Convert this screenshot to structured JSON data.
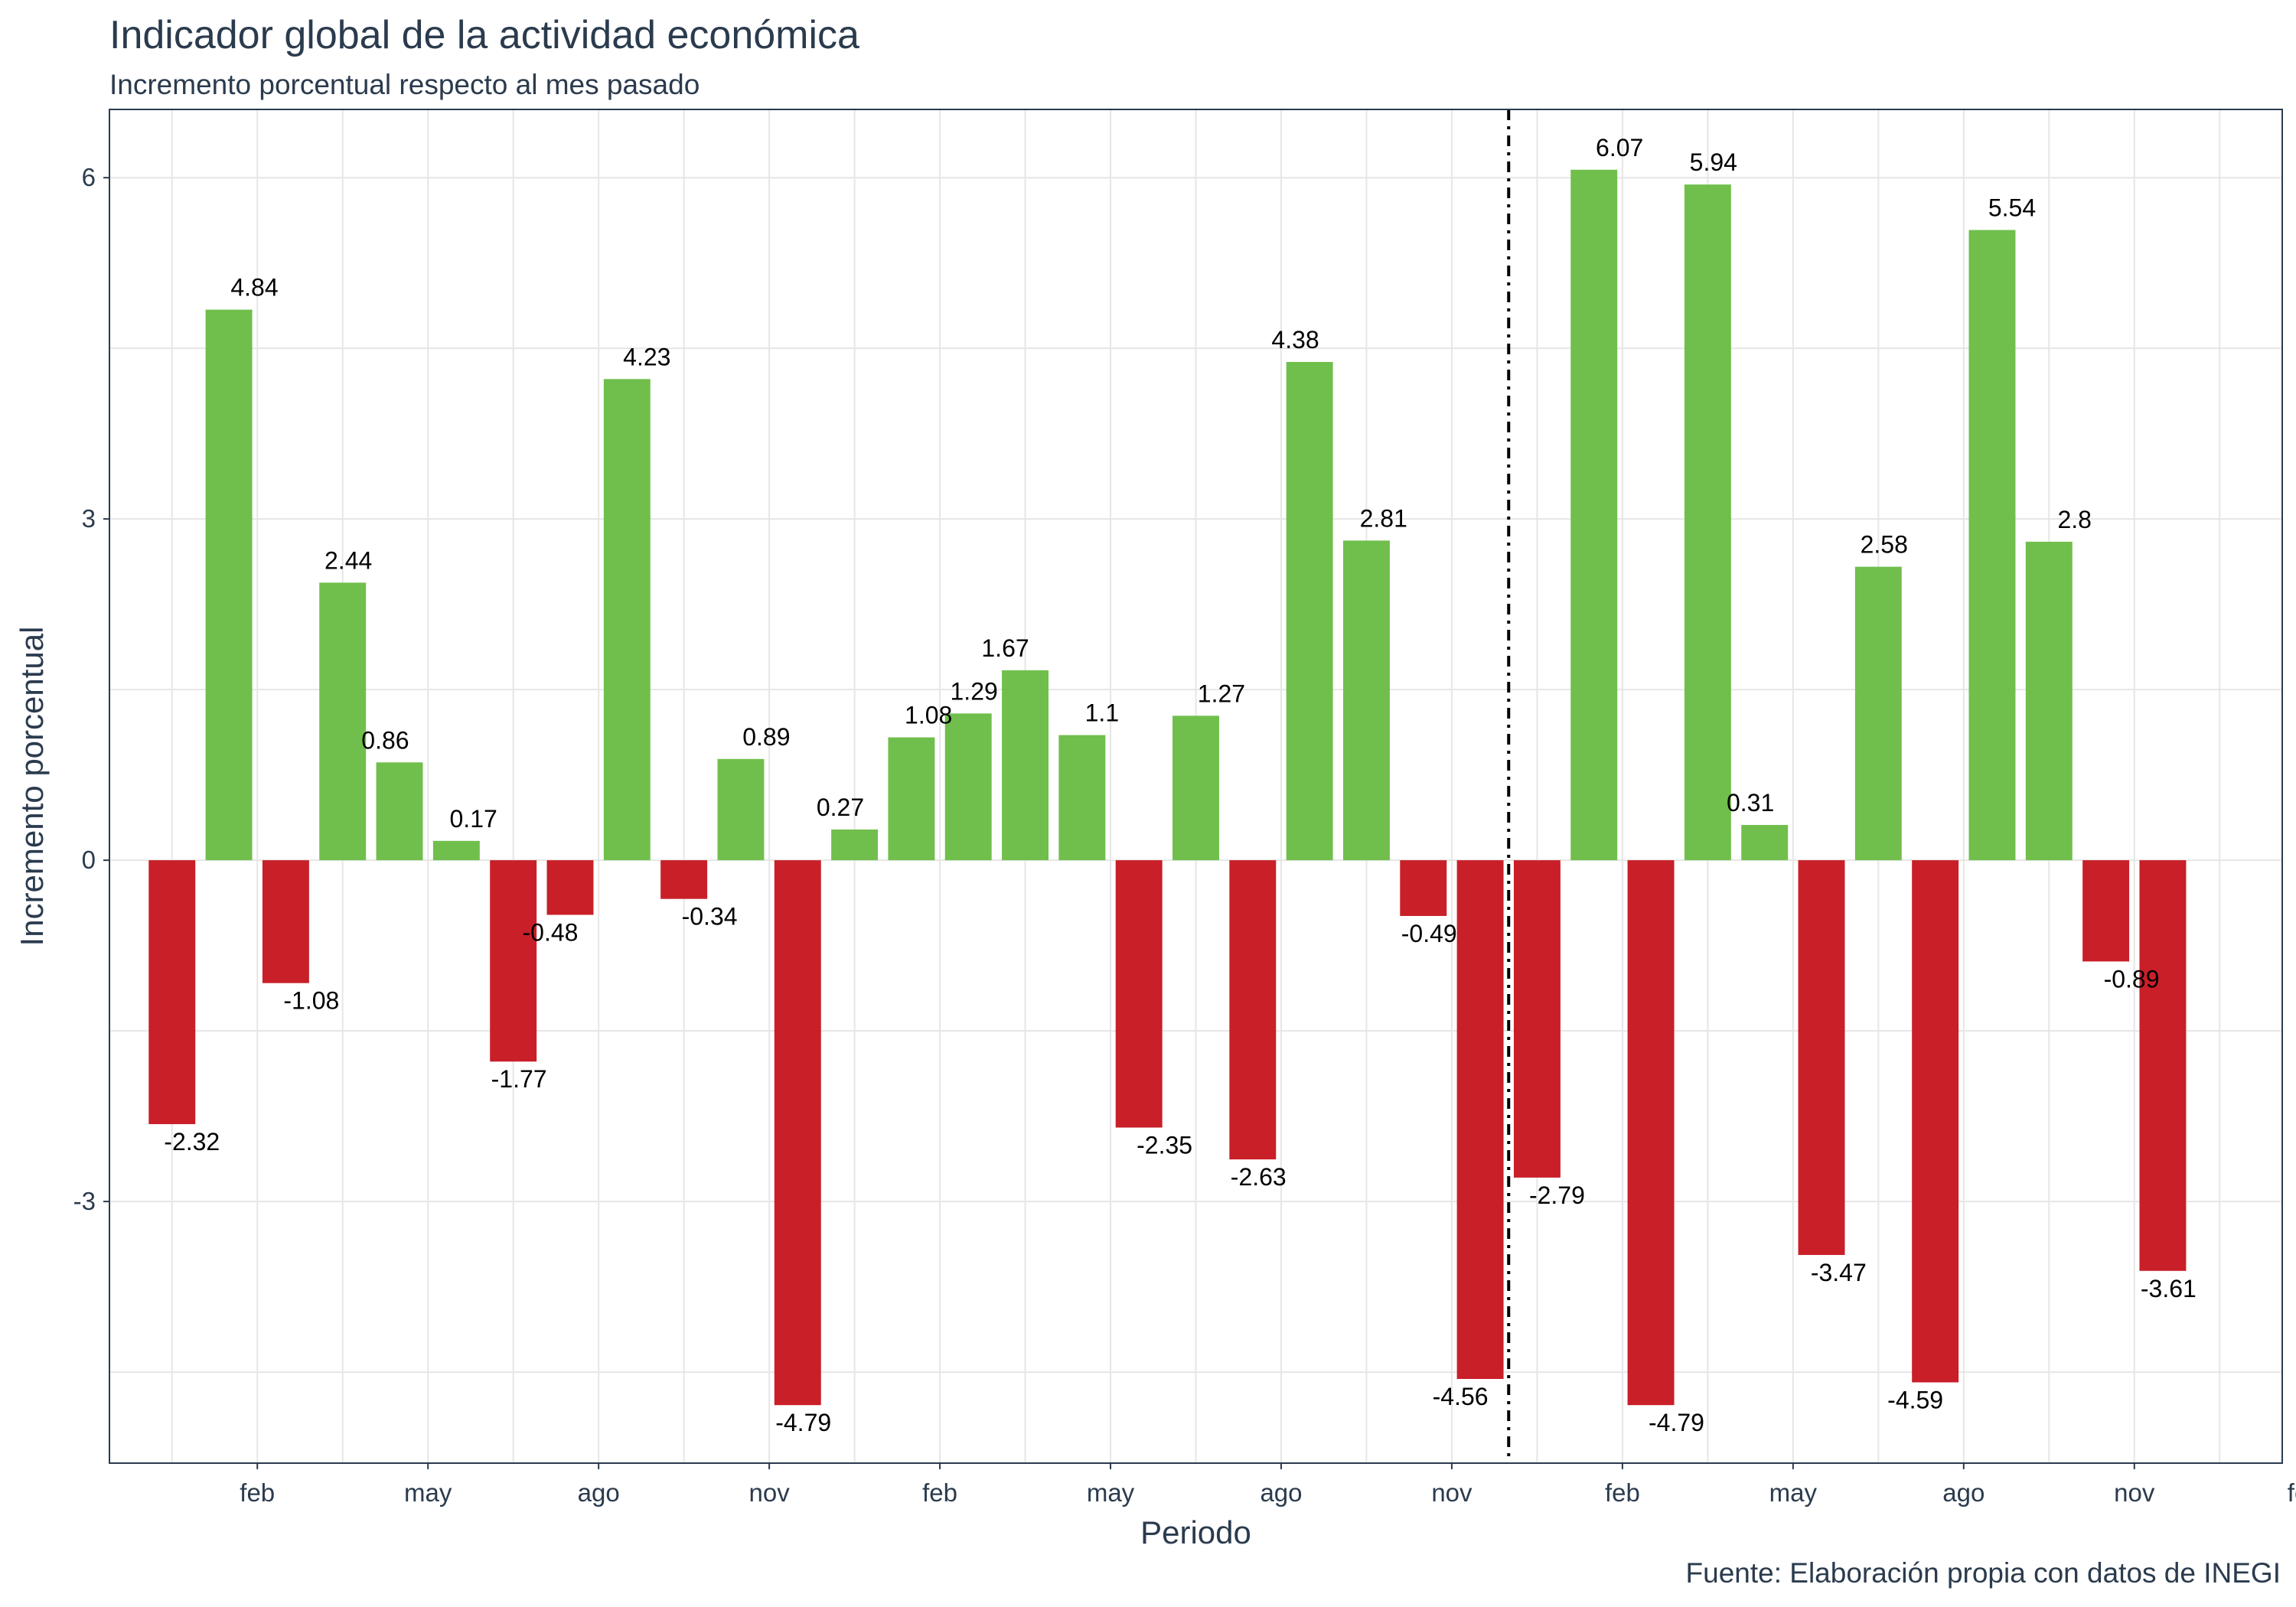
{
  "chart_data": {
    "type": "bar",
    "title": "Indicador global de la actividad económica",
    "subtitle": "Incremento porcentual respecto al mes pasado",
    "xlabel": "Periodo",
    "ylabel": "Incremento porcentual",
    "caption": "Fuente: Elaboración propia con datos de INEGI",
    "ylim": [
      -5.3,
      6.6
    ],
    "y_ticks": [
      -3,
      0,
      3,
      6
    ],
    "x_ticks": [
      {
        "label": "feb",
        "pos": 1.5
      },
      {
        "label": "may",
        "pos": 4.5
      },
      {
        "label": "ago",
        "pos": 7.5
      },
      {
        "label": "nov",
        "pos": 10.5
      },
      {
        "label": "feb",
        "pos": 13.5
      },
      {
        "label": "may",
        "pos": 16.5
      },
      {
        "label": "ago",
        "pos": 19.5
      },
      {
        "label": "nov",
        "pos": 22.5
      },
      {
        "label": "feb",
        "pos": 25.5
      },
      {
        "label": "may",
        "pos": 28.5
      },
      {
        "label": "ago",
        "pos": 31.5
      },
      {
        "label": "nov",
        "pos": 34.5
      },
      {
        "label": "feb",
        "pos": 37.5
      }
    ],
    "reference_line": {
      "pos": 23.5,
      "style": "dot-dash"
    },
    "grid": true,
    "positive_color": "#70bf4c",
    "negative_color": "#c91f28",
    "values": [
      -2.32,
      4.84,
      -1.08,
      2.44,
      0.86,
      0.17,
      -1.77,
      -0.48,
      4.23,
      -0.34,
      0.89,
      -4.79,
      0.27,
      1.08,
      1.29,
      1.67,
      1.1,
      -2.35,
      1.27,
      -2.63,
      4.38,
      2.81,
      -0.49,
      -4.56,
      -2.79,
      6.07,
      -4.79,
      5.94,
      0.31,
      -3.47,
      2.58,
      -4.59,
      5.54,
      2.8,
      -0.89,
      -3.61
    ],
    "labels": [
      "-2.32",
      "4.84",
      "-1.08",
      "2.44",
      "0.86",
      "0.17",
      "-1.77",
      "-0.48",
      "4.23",
      "-0.34",
      "0.89",
      "-4.79",
      "0.27",
      "1.08",
      "1.29",
      "1.67",
      "1.1",
      "-2.35",
      "1.27",
      "-2.63",
      "4.38",
      "2.81",
      "-0.49",
      "-4.56",
      "-2.79",
      "6.07",
      "-4.79",
      "5.94",
      "0.31",
      "-3.47",
      "2.58",
      "-4.59",
      "5.54",
      "2.8",
      "-0.89",
      "-3.61"
    ]
  }
}
